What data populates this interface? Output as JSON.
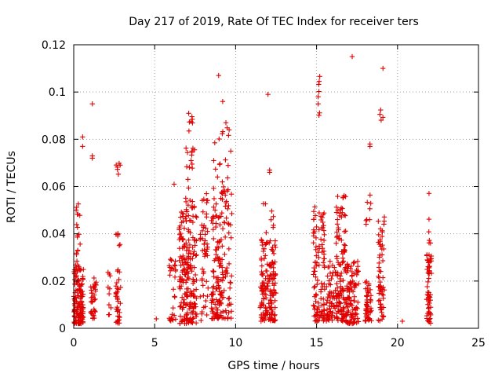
{
  "chart_data": {
    "type": "scatter",
    "title": "Day 217 of 2019, Rate Of TEC Index for receiver ters",
    "xlabel": "GPS time / hours",
    "ylabel": "ROTI / TECUs",
    "xlim": [
      0,
      25
    ],
    "ylim": [
      0,
      0.12
    ],
    "xticks": [
      0,
      5,
      10,
      15,
      20,
      25
    ],
    "yticks": [
      0,
      0.02,
      0.04,
      0.06,
      0.08,
      0.1,
      0.12
    ],
    "ytick_labels": [
      "0",
      "0.02",
      "0.04",
      "0.06",
      "0.08",
      "0.1",
      "0.12"
    ],
    "grid": true,
    "marker": "+",
    "color": "#e00000",
    "clusters": [
      {
        "x": [
          0.0,
          0.6
        ],
        "y": [
          0.002,
          0.025
        ],
        "n": 130
      },
      {
        "x": [
          0.1,
          0.4
        ],
        "y": [
          0.025,
          0.056
        ],
        "n": 22
      },
      {
        "x": [
          1.0,
          1.4
        ],
        "y": [
          0.003,
          0.022
        ],
        "n": 35
      },
      {
        "x": [
          2.1,
          2.3
        ],
        "y": [
          0.003,
          0.026
        ],
        "n": 10
      },
      {
        "x": [
          2.6,
          2.9
        ],
        "y": [
          0.002,
          0.025
        ],
        "n": 35
      },
      {
        "x": [
          2.6,
          2.9
        ],
        "y": [
          0.035,
          0.042
        ],
        "n": 6
      },
      {
        "x": [
          2.6,
          2.9
        ],
        "y": [
          0.063,
          0.072
        ],
        "n": 6
      },
      {
        "x": [
          5.9,
          6.3
        ],
        "y": [
          0.003,
          0.032
        ],
        "n": 30
      },
      {
        "x": [
          6.5,
          7.6
        ],
        "y": [
          0.002,
          0.05
        ],
        "n": 200
      },
      {
        "x": [
          6.9,
          7.5
        ],
        "y": [
          0.05,
          0.09
        ],
        "n": 30
      },
      {
        "x": [
          7.8,
          8.3
        ],
        "y": [
          0.003,
          0.055
        ],
        "n": 50
      },
      {
        "x": [
          8.5,
          9.1
        ],
        "y": [
          0.004,
          0.048
        ],
        "n": 100
      },
      {
        "x": [
          8.6,
          9.6
        ],
        "y": [
          0.048,
          0.092
        ],
        "n": 25
      },
      {
        "x": [
          9.1,
          9.8
        ],
        "y": [
          0.004,
          0.06
        ],
        "n": 70
      },
      {
        "x": [
          11.5,
          12.5
        ],
        "y": [
          0.003,
          0.038
        ],
        "n": 160
      },
      {
        "x": [
          11.7,
          12.4
        ],
        "y": [
          0.04,
          0.054
        ],
        "n": 8
      },
      {
        "x": [
          14.8,
          15.5
        ],
        "y": [
          0.003,
          0.052
        ],
        "n": 110
      },
      {
        "x": [
          15.1,
          15.2
        ],
        "y": [
          0.09,
          0.111
        ],
        "n": 6
      },
      {
        "x": [
          15.6,
          16.3
        ],
        "y": [
          0.003,
          0.03
        ],
        "n": 70
      },
      {
        "x": [
          16.2,
          16.8
        ],
        "y": [
          0.003,
          0.057
        ],
        "n": 110
      },
      {
        "x": [
          16.8,
          17.6
        ],
        "y": [
          0.002,
          0.03
        ],
        "n": 110
      },
      {
        "x": [
          18.0,
          18.4
        ],
        "y": [
          0.003,
          0.02
        ],
        "n": 50
      },
      {
        "x": [
          18.0,
          18.4
        ],
        "y": [
          0.043,
          0.06
        ],
        "n": 8
      },
      {
        "x": [
          18.8,
          19.2
        ],
        "y": [
          0.003,
          0.048
        ],
        "n": 60
      },
      {
        "x": [
          18.9,
          19.1
        ],
        "y": [
          0.088,
          0.093
        ],
        "n": 4
      },
      {
        "x": [
          21.8,
          22.1
        ],
        "y": [
          0.002,
          0.032
        ],
        "n": 60
      },
      {
        "x": [
          21.9,
          22.1
        ],
        "y": [
          0.036,
          0.06
        ],
        "n": 6
      }
    ],
    "outliers": [
      [
        0.15,
        0.05
      ],
      [
        0.25,
        0.033
      ],
      [
        0.55,
        0.081
      ],
      [
        0.55,
        0.077
      ],
      [
        1.15,
        0.095
      ],
      [
        1.15,
        0.073
      ],
      [
        1.15,
        0.072
      ],
      [
        5.1,
        0.004
      ],
      [
        6.2,
        0.061
      ],
      [
        7.1,
        0.091
      ],
      [
        7.3,
        0.075
      ],
      [
        8.2,
        0.057
      ],
      [
        8.95,
        0.107
      ],
      [
        9.2,
        0.096
      ],
      [
        9.4,
        0.087
      ],
      [
        9.6,
        0.084
      ],
      [
        9.7,
        0.075
      ],
      [
        12.0,
        0.099
      ],
      [
        12.1,
        0.067
      ],
      [
        12.1,
        0.066
      ],
      [
        15.1,
        0.098
      ],
      [
        15.1,
        0.095
      ],
      [
        17.2,
        0.115
      ],
      [
        18.3,
        0.078
      ],
      [
        18.3,
        0.077
      ],
      [
        19.1,
        0.11
      ],
      [
        20.3,
        0.003
      ]
    ]
  }
}
